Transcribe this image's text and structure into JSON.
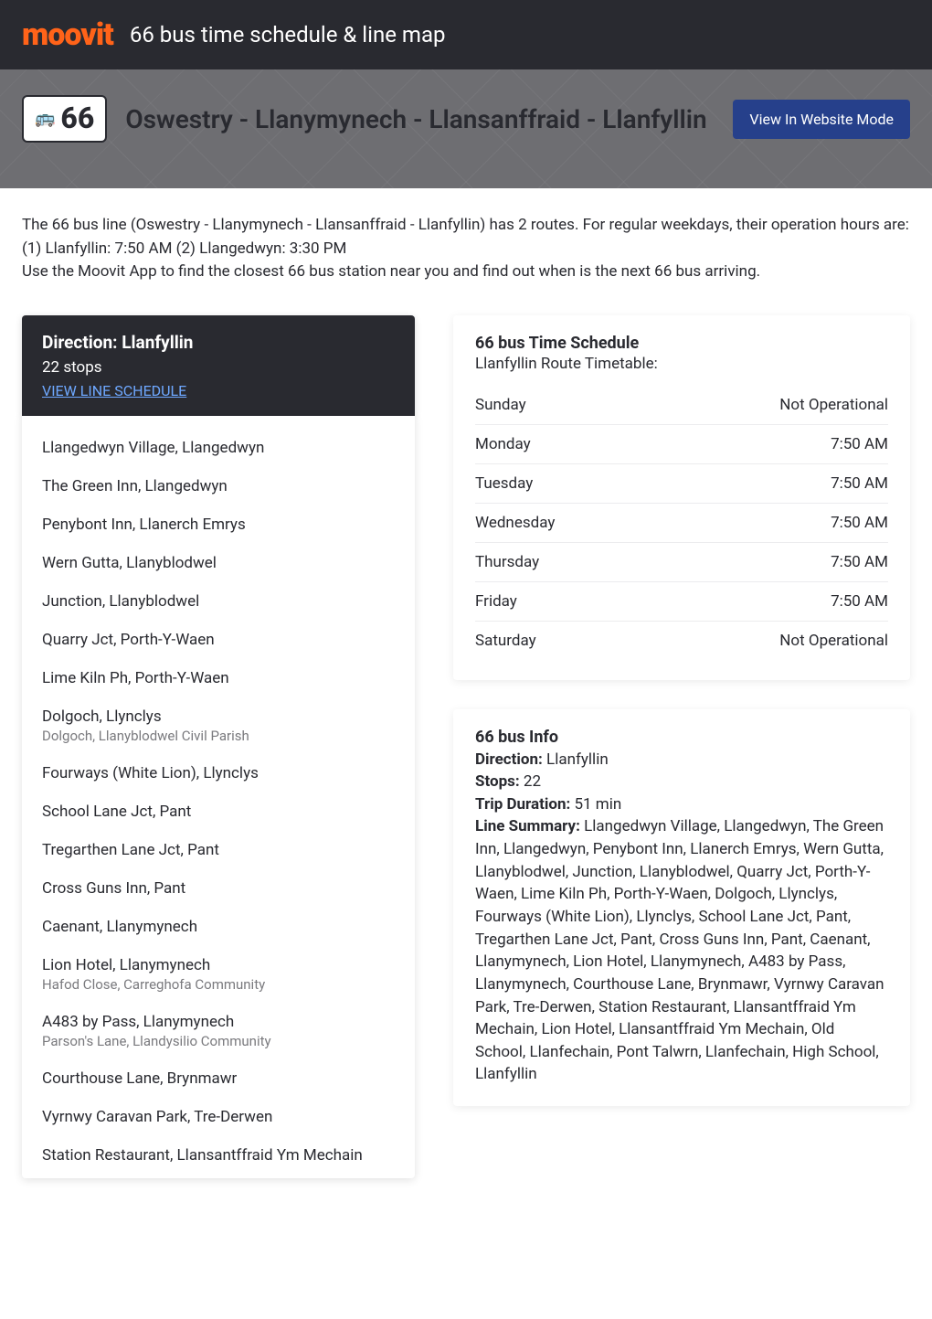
{
  "header": {
    "logo": "moovit",
    "title": "66 bus time schedule & line map"
  },
  "hero": {
    "bus_glyph": "🚌",
    "line_number": "66",
    "route_title": "Oswestry - Llanymynech - Llansanffraid - Llanfyllin",
    "website_mode_label": "View In Website Mode"
  },
  "intro": {
    "p1": "The 66 bus line (Oswestry - Llanymynech - Llansanffraid - Llanfyllin) has 2 routes. For regular weekdays, their operation hours are:",
    "p2": "(1) Llanfyllin: 7:50 AM (2) Llangedwyn: 3:30 PM",
    "p3": "Use the Moovit App to find the closest 66 bus station near you and find out when is the next 66 bus arriving."
  },
  "direction_card": {
    "title": "Direction: Llanfyllin",
    "stops_count": "22 stops",
    "view_link": "VIEW LINE SCHEDULE"
  },
  "stops": [
    {
      "name": "Llangedwyn Village, Llangedwyn",
      "sub": ""
    },
    {
      "name": "The Green Inn, Llangedwyn",
      "sub": ""
    },
    {
      "name": "Penybont Inn, Llanerch Emrys",
      "sub": ""
    },
    {
      "name": "Wern Gutta, Llanyblodwel",
      "sub": ""
    },
    {
      "name": "Junction, Llanyblodwel",
      "sub": ""
    },
    {
      "name": "Quarry Jct, Porth-Y-Waen",
      "sub": ""
    },
    {
      "name": "Lime Kiln Ph, Porth-Y-Waen",
      "sub": ""
    },
    {
      "name": "Dolgoch, Llynclys",
      "sub": "Dolgoch, Llanyblodwel Civil Parish"
    },
    {
      "name": "Fourways (White Lion), Llynclys",
      "sub": ""
    },
    {
      "name": "School Lane Jct, Pant",
      "sub": ""
    },
    {
      "name": "Tregarthen Lane Jct, Pant",
      "sub": ""
    },
    {
      "name": "Cross Guns Inn, Pant",
      "sub": ""
    },
    {
      "name": "Caenant, Llanymynech",
      "sub": ""
    },
    {
      "name": "Lion Hotel, Llanymynech",
      "sub": "Hafod Close, Carreghofa Community"
    },
    {
      "name": "A483 by Pass, Llanymynech",
      "sub": "Parson's Lane, Llandysilio Community"
    },
    {
      "name": "Courthouse Lane, Brynmawr",
      "sub": ""
    },
    {
      "name": "Vyrnwy Caravan Park, Tre-Derwen",
      "sub": ""
    },
    {
      "name": "Station Restaurant, Llansantffraid Ym Mechain",
      "sub": ""
    }
  ],
  "schedule": {
    "title": "66 bus Time Schedule",
    "subtitle": "Llanfyllin Route Timetable:",
    "rows": [
      {
        "day": "Sunday",
        "time": "Not Operational"
      },
      {
        "day": "Monday",
        "time": "7:50 AM"
      },
      {
        "day": "Tuesday",
        "time": "7:50 AM"
      },
      {
        "day": "Wednesday",
        "time": "7:50 AM"
      },
      {
        "day": "Thursday",
        "time": "7:50 AM"
      },
      {
        "day": "Friday",
        "time": "7:50 AM"
      },
      {
        "day": "Saturday",
        "time": "Not Operational"
      }
    ]
  },
  "info": {
    "title": "66 bus Info",
    "direction_label": "Direction:",
    "direction_value": " Llanfyllin",
    "stops_label": "Stops:",
    "stops_value": " 22",
    "duration_label": "Trip Duration:",
    "duration_value": " 51 min",
    "summary_label": "Line Summary:",
    "summary_value": " Llangedwyn Village, Llangedwyn, The Green Inn, Llangedwyn, Penybont Inn, Llanerch Emrys, Wern Gutta, Llanyblodwel, Junction, Llanyblodwel, Quarry Jct, Porth-Y-Waen, Lime Kiln Ph, Porth-Y-Waen, Dolgoch, Llynclys, Fourways (White Lion), Llynclys, School Lane Jct, Pant, Tregarthen Lane Jct, Pant, Cross Guns Inn, Pant, Caenant, Llanymynech, Lion Hotel, Llanymynech, A483 by Pass, Llanymynech, Courthouse Lane, Brynmawr, Vyrnwy Caravan Park, Tre-Derwen, Station Restaurant, Llansantffraid Ym Mechain, Lion Hotel, Llansantffraid Ym Mechain, Old School, Llanfechain, Pont Talwrn, Llanfechain, High School, Llanfyllin"
  },
  "colors": {
    "logo": "#ff6319",
    "dark": "#292a30",
    "hero_bg": "#6e6e72",
    "btn_bg": "#26408b",
    "link": "#6ea8ff"
  }
}
